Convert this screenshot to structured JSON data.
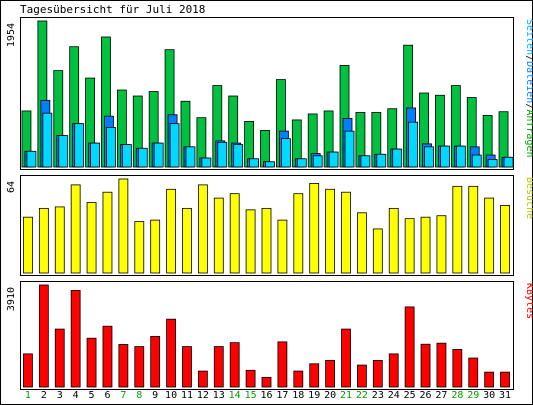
{
  "title": "Tagesübersicht für Juli 2018",
  "colors": {
    "frame": "#000000",
    "panel_bg": "#ffffff",
    "hits": "#00c040",
    "files": "#0080ff",
    "pages": "#00d8ff",
    "visits": "#ffff00",
    "kbytes": "#ff0000",
    "day_weekday": "#000000",
    "day_weekend": "#00a000",
    "outline": "#000000"
  },
  "chart_data": [
    {
      "type": "bar",
      "panel": "top",
      "ymax_label": "1954",
      "ylim": [
        0,
        1954
      ],
      "legend": [
        {
          "text": "Seiten",
          "color": "#00b0ff"
        },
        {
          "text": "/",
          "color": "#000000"
        },
        {
          "text": "Dateien",
          "color": "#0080ff"
        },
        {
          "text": "/",
          "color": "#000000"
        },
        {
          "text": "Anfragen",
          "color": "#00a000"
        }
      ],
      "legend_placement": "right",
      "categories": [
        "1",
        "2",
        "3",
        "4",
        "5",
        "6",
        "7",
        "8",
        "9",
        "10",
        "11",
        "12",
        "13",
        "14",
        "15",
        "16",
        "17",
        "18",
        "19",
        "20",
        "21",
        "22",
        "23",
        "24",
        "25",
        "26",
        "27",
        "28",
        "29",
        "30",
        "31"
      ],
      "series": [
        {
          "name": "Anfragen",
          "values": [
            750,
            1954,
            1290,
            1610,
            1190,
            1740,
            1030,
            950,
            1010,
            1570,
            880,
            660,
            1090,
            950,
            610,
            490,
            1170,
            630,
            710,
            750,
            1360,
            730,
            730,
            780,
            1630,
            990,
            960,
            1090,
            930,
            690,
            740
          ]
        },
        {
          "name": "Dateien",
          "values": [
            210,
            890,
            420,
            580,
            320,
            680,
            300,
            250,
            320,
            700,
            270,
            120,
            350,
            320,
            110,
            70,
            480,
            110,
            180,
            200,
            650,
            150,
            170,
            240,
            790,
            310,
            280,
            280,
            270,
            160,
            130
          ]
        },
        {
          "name": "Seiten",
          "values": [
            210,
            720,
            420,
            580,
            320,
            530,
            300,
            250,
            320,
            580,
            270,
            120,
            330,
            300,
            110,
            70,
            380,
            110,
            150,
            200,
            480,
            150,
            170,
            240,
            600,
            270,
            280,
            280,
            160,
            100,
            130
          ]
        }
      ]
    },
    {
      "type": "bar",
      "panel": "middle",
      "ymax_label": "64",
      "ylim": [
        0,
        64
      ],
      "legend": [
        {
          "text": "Besuche",
          "color": "#c0c000"
        }
      ],
      "legend_placement": "right",
      "categories": [
        "1",
        "2",
        "3",
        "4",
        "5",
        "6",
        "7",
        "8",
        "9",
        "10",
        "11",
        "12",
        "13",
        "14",
        "15",
        "16",
        "17",
        "18",
        "19",
        "20",
        "21",
        "22",
        "23",
        "24",
        "25",
        "26",
        "27",
        "28",
        "29",
        "30",
        "31"
      ],
      "series": [
        {
          "name": "Besuche",
          "values": [
            38,
            44,
            45,
            60,
            48,
            55,
            64,
            35,
            36,
            57,
            44,
            60,
            51,
            54,
            43,
            44,
            36,
            54,
            61,
            57,
            55,
            41,
            30,
            44,
            37,
            38,
            39,
            59,
            59,
            51,
            46
          ]
        }
      ]
    },
    {
      "type": "bar",
      "panel": "bottom",
      "ymax_label": "3910",
      "ylim": [
        0,
        3910
      ],
      "legend": [
        {
          "text": "KBytes",
          "color": "#ff0000"
        }
      ],
      "legend_placement": "right",
      "categories": [
        "1",
        "2",
        "3",
        "4",
        "5",
        "6",
        "7",
        "8",
        "9",
        "10",
        "11",
        "12",
        "13",
        "14",
        "15",
        "16",
        "17",
        "18",
        "19",
        "20",
        "21",
        "22",
        "23",
        "24",
        "25",
        "26",
        "27",
        "28",
        "29",
        "30",
        "31"
      ],
      "weekend_days": [
        "1",
        "7",
        "8",
        "14",
        "15",
        "21",
        "22",
        "28",
        "29"
      ],
      "series": [
        {
          "name": "KBytes",
          "values": [
            1270,
            3910,
            2220,
            3700,
            1870,
            2330,
            1630,
            1550,
            1940,
            2600,
            1550,
            610,
            1550,
            1700,
            640,
            370,
            1730,
            610,
            890,
            1020,
            2220,
            840,
            1020,
            1270,
            3070,
            1640,
            1680,
            1440,
            1110,
            570,
            570
          ]
        }
      ]
    }
  ]
}
